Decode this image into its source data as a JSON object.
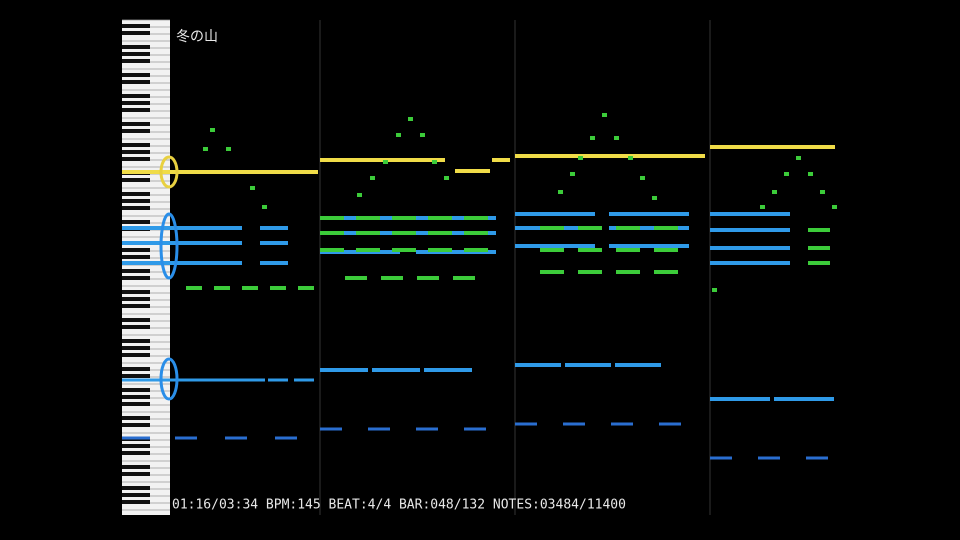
{
  "header": {
    "title": "冬の山"
  },
  "status": "01:16/03:34 BPM:145 BEAT:4/4 BAR:048/132 NOTES:03484/11400"
}
